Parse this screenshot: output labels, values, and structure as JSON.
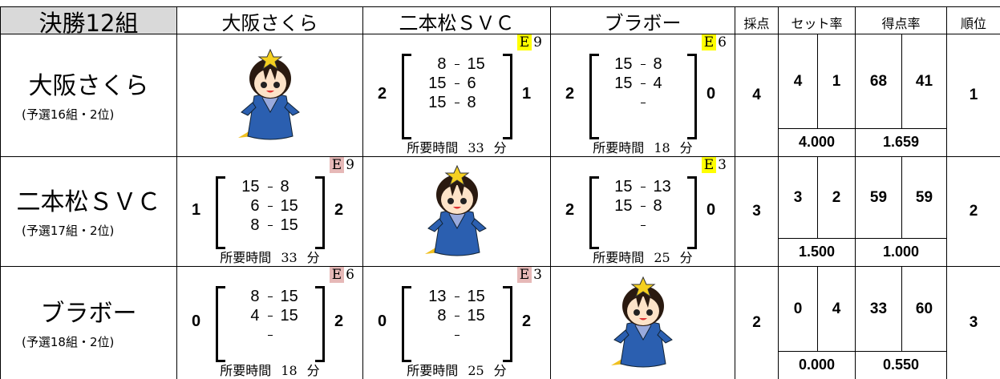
{
  "header": {
    "title": "決勝12組",
    "teams": [
      "大阪さくら",
      "二本松ＳＶＣ",
      "ブラボー"
    ],
    "score": "採点",
    "set_rate": "セット率",
    "point_rate": "得点率",
    "rank": "順位"
  },
  "labels": {
    "duration": "所要時間",
    "minute": "分"
  },
  "rows": [
    {
      "team": "大阪さくら",
      "sub": "(予選16組・2位)",
      "matches": [
        null,
        {
          "left": 2,
          "right": 1,
          "sets": [
            [
              8,
              15
            ],
            [
              15,
              6
            ],
            [
              15,
              8
            ]
          ],
          "court": "E",
          "match": 9,
          "badge_color": "#ffff00",
          "duration": 33
        },
        {
          "left": 2,
          "right": 0,
          "sets": [
            [
              15,
              8
            ],
            [
              15,
              4
            ]
          ],
          "court": "E",
          "match": 6,
          "badge_color": "#ffff00",
          "duration": 18
        }
      ],
      "points": 4,
      "sets_won": 4,
      "sets_lost": 1,
      "set_rate": "4.000",
      "points_for": 68,
      "points_against": 41,
      "point_rate": "1.659",
      "rank": 1
    },
    {
      "team": "二本松ＳＶＣ",
      "sub": "(予選17組・2位)",
      "matches": [
        {
          "left": 1,
          "right": 2,
          "sets": [
            [
              15,
              8
            ],
            [
              6,
              15
            ],
            [
              8,
              15
            ]
          ],
          "court": "E",
          "match": 9,
          "badge_color": "#e6b8b7",
          "duration": 33
        },
        null,
        {
          "left": 2,
          "right": 0,
          "sets": [
            [
              15,
              13
            ],
            [
              15,
              8
            ]
          ],
          "court": "E",
          "match": 3,
          "badge_color": "#ffff00",
          "duration": 25
        }
      ],
      "points": 3,
      "sets_won": 3,
      "sets_lost": 2,
      "set_rate": "1.500",
      "points_for": 59,
      "points_against": 59,
      "point_rate": "1.000",
      "rank": 2
    },
    {
      "team": "ブラボー",
      "sub": "(予選18組・2位)",
      "matches": [
        {
          "left": 0,
          "right": 2,
          "sets": [
            [
              8,
              15
            ],
            [
              4,
              15
            ]
          ],
          "court": "E",
          "match": 6,
          "badge_color": "#e6b8b7",
          "duration": 18
        },
        {
          "left": 0,
          "right": 2,
          "sets": [
            [
              13,
              15
            ],
            [
              8,
              15
            ]
          ],
          "court": "E",
          "match": 3,
          "badge_color": "#e6b8b7",
          "duration": 25
        },
        null
      ],
      "points": 2,
      "sets_won": 0,
      "sets_lost": 4,
      "set_rate": "0.000",
      "points_for": 33,
      "points_against": 60,
      "point_rate": "0.550",
      "rank": 3
    }
  ]
}
